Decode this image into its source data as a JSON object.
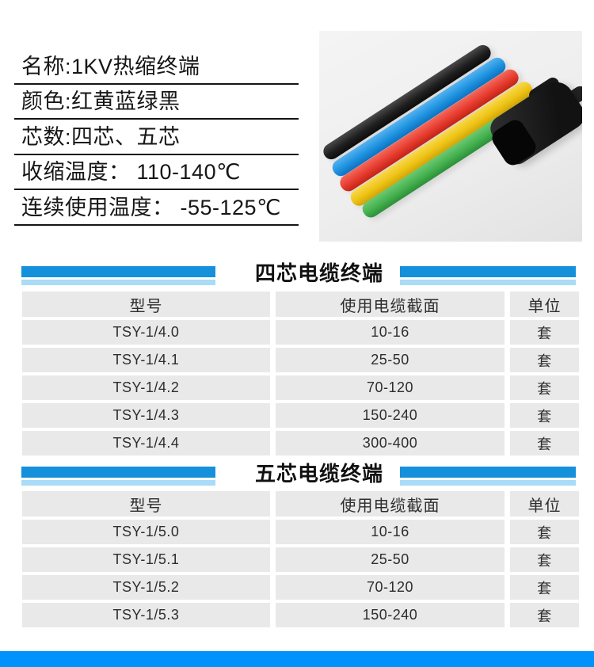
{
  "specs": {
    "items": [
      "名称:1KV热缩终端",
      "颜色:红黄蓝绿黑",
      "芯数:四芯、五芯",
      "收缩温度： 110-140℃",
      "连续使用温度： -55-125℃"
    ]
  },
  "photo": {
    "tubes": [
      {
        "name": "black",
        "color": "#1f1f1f"
      },
      {
        "name": "blue",
        "color": "#1e93e0"
      },
      {
        "name": "red",
        "color": "#e63c2f"
      },
      {
        "name": "yellow",
        "color": "#eec315"
      },
      {
        "name": "green",
        "color": "#45b14f"
      }
    ],
    "boot_color": "#161616",
    "background": "#eeeeee"
  },
  "sections": [
    {
      "title": "四芯电缆终端",
      "table": {
        "headers": [
          "型号",
          "使用电缆截面",
          "单位"
        ],
        "rows": [
          [
            "TSY-1/4.0",
            "10-16",
            "套"
          ],
          [
            "TSY-1/4.1",
            "25-50",
            "套"
          ],
          [
            "TSY-1/4.2",
            "70-120",
            "套"
          ],
          [
            "TSY-1/4.3",
            "150-240",
            "套"
          ],
          [
            "TSY-1/4.4",
            "300-400",
            "套"
          ]
        ]
      }
    },
    {
      "title": "五芯电缆终端",
      "table": {
        "headers": [
          "型号",
          "使用电缆截面",
          "单位"
        ],
        "rows": [
          [
            "TSY-1/5.0",
            "10-16",
            "套"
          ],
          [
            "TSY-1/5.1",
            "25-50",
            "套"
          ],
          [
            "TSY-1/5.2",
            "70-120",
            "套"
          ],
          [
            "TSY-1/5.3",
            "150-240",
            "套"
          ]
        ]
      }
    }
  ],
  "colors": {
    "stripe_dark": "#1590db",
    "stripe_light": "#a9dcf7",
    "bottom_bar": "#0092fc",
    "cell_background": "#e9e9e9",
    "text": "#1c1c1c"
  }
}
